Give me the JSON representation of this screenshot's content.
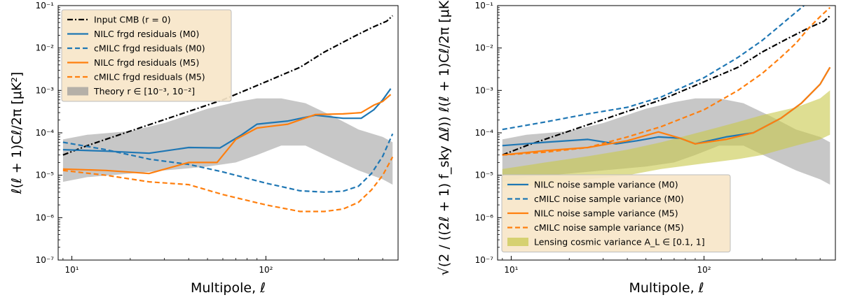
{
  "chart_data": [
    {
      "type": "line",
      "xlabel": "Multipole, ℓ",
      "ylabel": "ℓ(ℓ + 1)Cℓ/2π [μK²]",
      "xscale": "log",
      "yscale": "log",
      "xlim": [
        8.5,
        480
      ],
      "ylim": [
        1e-07,
        0.1
      ],
      "x_ticks": [
        {
          "value": 10,
          "label": "10¹"
        },
        {
          "value": 100,
          "label": "10²"
        }
      ],
      "y_ticks": [
        {
          "value": 1e-07,
          "label": "10⁻⁷"
        },
        {
          "value": 1e-06,
          "label": "10⁻⁶"
        },
        {
          "value": 1e-05,
          "label": "10⁻⁵"
        },
        {
          "value": 0.0001,
          "label": "10⁻⁴"
        },
        {
          "value": 0.001,
          "label": "10⁻³"
        },
        {
          "value": 0.01,
          "label": "10⁻²"
        },
        {
          "value": 0.1,
          "label": "10⁻¹"
        }
      ],
      "legend_position": "top-left",
      "series": [
        {
          "name": "Input CMB (r = 0)",
          "color": "#000000",
          "style": "dashdot",
          "x": [
            9,
            12,
            20,
            35,
            60,
            100,
            150,
            200,
            280,
            350,
            420,
            450
          ],
          "y": [
            3e-05,
            5e-05,
            0.00011,
            0.00026,
            0.0006,
            0.0016,
            0.0035,
            0.008,
            0.018,
            0.03,
            0.043,
            0.058
          ]
        },
        {
          "name": "NILC frgd residuals (M0)",
          "color": "#1f77b4",
          "style": "solid",
          "x": [
            9,
            15,
            25,
            40,
            58,
            75,
            90,
            130,
            180,
            250,
            310,
            360,
            400,
            440
          ],
          "y": [
            4e-05,
            3.7e-05,
            3.3e-05,
            4.5e-05,
            4.4e-05,
            9e-05,
            0.00016,
            0.00019,
            0.00026,
            0.00022,
            0.00022,
            0.00035,
            0.0006,
            0.0011
          ]
        },
        {
          "name": "cMILC frgd residuals (M0)",
          "color": "#1f77b4",
          "style": "dashed",
          "x": [
            9,
            15,
            25,
            40,
            60,
            100,
            150,
            200,
            250,
            300,
            350,
            400,
            450
          ],
          "y": [
            6e-05,
            4e-05,
            2.4e-05,
            1.8e-05,
            1.2e-05,
            6.5e-06,
            4.3e-06,
            4e-06,
            4.2e-06,
            5.5e-06,
            1.1e-05,
            2.8e-05,
            9.5e-05
          ]
        },
        {
          "name": "NILC frgd residuals (M5)",
          "color": "#ff7f0e",
          "style": "solid",
          "x": [
            9,
            15,
            25,
            40,
            56,
            70,
            90,
            130,
            180,
            250,
            310,
            360,
            400,
            440
          ],
          "y": [
            1.4e-05,
            1.3e-05,
            1.1e-05,
            2e-05,
            2e-05,
            7e-05,
            0.00013,
            0.00016,
            0.00027,
            0.00028,
            0.0003,
            0.00045,
            0.00055,
            0.0008
          ]
        },
        {
          "name": "cMILC frgd residuals (M5)",
          "color": "#ff7f0e",
          "style": "dashed",
          "x": [
            9,
            15,
            25,
            40,
            60,
            100,
            150,
            200,
            250,
            300,
            350,
            400,
            450
          ],
          "y": [
            1.3e-05,
            1e-05,
            7e-06,
            6e-06,
            3.5e-06,
            2e-06,
            1.4e-06,
            1.4e-06,
            1.6e-06,
            2.3e-06,
            4.5e-06,
            1e-05,
            2.7e-05
          ]
        }
      ],
      "bands": [
        {
          "name": "Theory r ∈ [10⁻³, 10⁻²]",
          "color": "#999999",
          "opacity": 0.55,
          "x": [
            9,
            12,
            20,
            30,
            50,
            70,
            90,
            120,
            160,
            220,
            300,
            400,
            450
          ],
          "lower": [
            7e-06,
            9e-06,
            1.1e-05,
            1.3e-05,
            1.6e-05,
            2e-05,
            3e-05,
            5e-05,
            5e-05,
            2.5e-05,
            1.3e-05,
            8e-06,
            6e-06
          ],
          "upper": [
            7e-05,
            9e-05,
            0.00011,
            0.00017,
            0.00037,
            0.00053,
            0.00065,
            0.00065,
            0.0005,
            0.00025,
            0.00012,
            8e-05,
            6e-05
          ]
        }
      ],
      "legend": [
        {
          "label": "Input CMB (r = 0)",
          "color": "#000000",
          "style": "dashdot"
        },
        {
          "label": "NILC frgd residuals (M0)",
          "color": "#1f77b4",
          "style": "solid"
        },
        {
          "label": "cMILC frgd residuals (M0)",
          "color": "#1f77b4",
          "style": "dashed"
        },
        {
          "label": "NILC frgd residuals (M5)",
          "color": "#ff7f0e",
          "style": "solid"
        },
        {
          "label": "cMILC frgd residuals (M5)",
          "color": "#ff7f0e",
          "style": "dashed"
        },
        {
          "label": "Theory r ∈ [10⁻³, 10⁻²]",
          "color": "#999999",
          "style": "band"
        }
      ]
    },
    {
      "type": "line",
      "xlabel": "Multipole, ℓ",
      "ylabel": "√(2 / ((2ℓ + 1) f_sky Δℓ)) ℓ(ℓ + 1)Cℓ/2π [μK²]",
      "xscale": "log",
      "yscale": "log",
      "xlim": [
        8.5,
        480
      ],
      "ylim": [
        1e-07,
        0.1
      ],
      "x_ticks": [
        {
          "value": 10,
          "label": "10¹"
        },
        {
          "value": 100,
          "label": "10²"
        }
      ],
      "y_ticks": [
        {
          "value": 1e-07,
          "label": "10⁻⁷"
        },
        {
          "value": 1e-06,
          "label": "10⁻⁶"
        },
        {
          "value": 1e-05,
          "label": "10⁻⁵"
        },
        {
          "value": 0.0001,
          "label": "10⁻⁴"
        },
        {
          "value": 0.001,
          "label": "10⁻³"
        },
        {
          "value": 0.01,
          "label": "10⁻²"
        },
        {
          "value": 0.1,
          "label": "10⁻¹"
        }
      ],
      "legend_position": "bottom-left",
      "series": [
        {
          "name": "Input CMB (r = 0)",
          "color": "#000000",
          "style": "dashdot",
          "in_legend": false,
          "x": [
            9,
            12,
            20,
            35,
            60,
            100,
            150,
            200,
            280,
            350,
            420,
            450
          ],
          "y": [
            3e-05,
            5e-05,
            0.00011,
            0.00026,
            0.0006,
            0.0016,
            0.0035,
            0.008,
            0.018,
            0.03,
            0.043,
            0.058
          ]
        },
        {
          "name": "NILC noise sample variance (M0)",
          "color": "#1f77b4",
          "style": "solid",
          "x": [
            9,
            15,
            25,
            35,
            45,
            58,
            75,
            90,
            130,
            180,
            250,
            320,
            400,
            450
          ],
          "y": [
            5e-05,
            6e-05,
            7e-05,
            5.5e-05,
            6.5e-05,
            8e-05,
            7.5e-05,
            5.5e-05,
            8e-05,
            0.0001,
            0.00022,
            0.0005,
            0.0014,
            0.0035
          ]
        },
        {
          "name": "cMILC noise sample variance (M0)",
          "color": "#1f77b4",
          "style": "dashed",
          "x": [
            9,
            15,
            25,
            40,
            60,
            100,
            150,
            200,
            250,
            300,
            330
          ],
          "y": [
            0.00012,
            0.00018,
            0.00028,
            0.0004,
            0.0007,
            0.002,
            0.006,
            0.015,
            0.035,
            0.07,
            0.1
          ]
        },
        {
          "name": "NILC noise sample variance (M5)",
          "color": "#ff7f0e",
          "style": "solid",
          "x": [
            9,
            15,
            25,
            40,
            58,
            75,
            90,
            130,
            180,
            250,
            320,
            400,
            450
          ],
          "y": [
            3e-05,
            3.8e-05,
            4.5e-05,
            6.5e-05,
            0.000105,
            7.5e-05,
            5.5e-05,
            7e-05,
            0.0001,
            0.00022,
            0.0005,
            0.0014,
            0.0035
          ]
        },
        {
          "name": "cMILC noise sample variance (M5)",
          "color": "#ff7f0e",
          "style": "dashed",
          "x": [
            9,
            15,
            25,
            40,
            60,
            100,
            150,
            200,
            250,
            300,
            350,
            400,
            450
          ],
          "y": [
            3e-05,
            3.5e-05,
            4.5e-05,
            8e-05,
            0.00014,
            0.00035,
            0.001,
            0.0025,
            0.006,
            0.013,
            0.03,
            0.055,
            0.09
          ]
        }
      ],
      "bands": [
        {
          "name": "Theory r ∈ [10⁻³, 10⁻²]",
          "color": "#999999",
          "opacity": 0.55,
          "in_legend": false,
          "x": [
            9,
            12,
            20,
            30,
            50,
            70,
            90,
            120,
            160,
            220,
            300,
            400,
            450
          ],
          "lower": [
            7e-06,
            9e-06,
            1.1e-05,
            1.3e-05,
            1.6e-05,
            2e-05,
            3e-05,
            5e-05,
            5e-05,
            2.5e-05,
            1.3e-05,
            8e-06,
            6e-06
          ],
          "upper": [
            7e-05,
            9e-05,
            0.00011,
            0.00017,
            0.00037,
            0.00053,
            0.00065,
            0.00065,
            0.0005,
            0.00025,
            0.00012,
            8e-05,
            6e-05
          ]
        },
        {
          "name": "Lensing cosmic variance A_L ∈ [0.1, 1]",
          "color": "#c8c84a",
          "opacity": 0.6,
          "x": [
            9,
            15,
            25,
            40,
            60,
            100,
            150,
            200,
            300,
            400,
            450
          ],
          "lower": [
            5e-06,
            6e-06,
            8e-06,
            1e-05,
            1.4e-05,
            1.9e-05,
            2.4e-05,
            3e-05,
            5e-05,
            7e-05,
            9e-05
          ],
          "upper": [
            1.4e-05,
            2e-05,
            2.8e-05,
            4e-05,
            6e-05,
            0.00011,
            0.00018,
            0.00026,
            0.0004,
            0.00065,
            0.001
          ]
        }
      ],
      "legend": [
        {
          "label": "NILC noise sample variance (M0)",
          "color": "#1f77b4",
          "style": "solid"
        },
        {
          "label": "cMILC noise sample variance (M0)",
          "color": "#1f77b4",
          "style": "dashed"
        },
        {
          "label": "NILC noise sample variance (M5)",
          "color": "#ff7f0e",
          "style": "solid"
        },
        {
          "label": "cMILC noise sample variance (M5)",
          "color": "#ff7f0e",
          "style": "dashed"
        },
        {
          "label": "Lensing cosmic variance A_L ∈ [0.1, 1]",
          "color": "#c8c84a",
          "style": "band"
        }
      ]
    }
  ]
}
